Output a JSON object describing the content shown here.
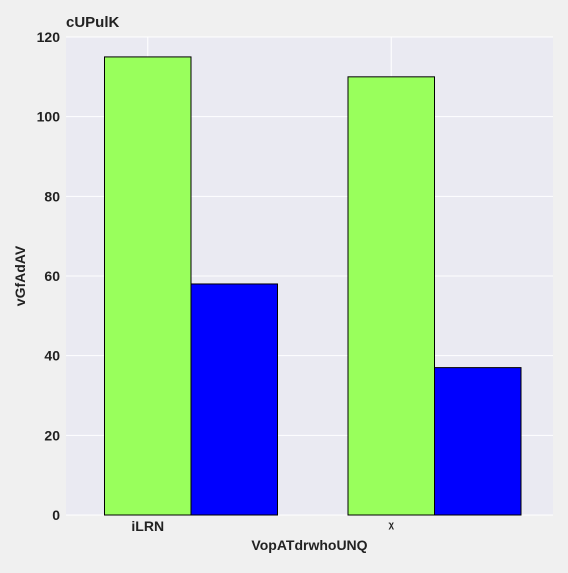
{
  "chart_data": {
    "type": "bar",
    "title": "cUPulK",
    "xlabel": "VopATdrwhoUNQ",
    "ylabel": "vGfAdAV",
    "categories": [
      "iLRN",
      "ᵡ"
    ],
    "series": [
      {
        "values": [
          115,
          110
        ],
        "color": "#99ff5c"
      },
      {
        "values": [
          58,
          37
        ],
        "color": "#0000ff"
      }
    ],
    "ylim": [
      0,
      120
    ],
    "yticks": [
      0,
      20,
      40,
      60,
      80,
      100,
      120
    ],
    "grid": true,
    "background": "#eaeaf2",
    "figure_background": "#f0f0f0"
  }
}
